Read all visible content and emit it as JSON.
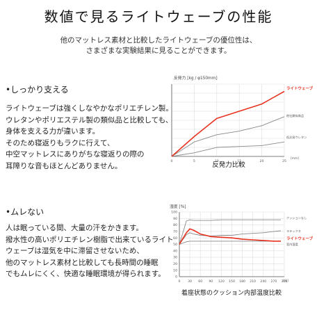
{
  "page": {
    "title": "数値で見るライトウェーブの性能",
    "intro_lines": [
      "他のマットレス素材と比較したライトウェーブの優位性は、",
      "さまざまな実験結果に見ることができます。"
    ]
  },
  "section1": {
    "heading": "•しっかり支える",
    "lines": [
      "ライトウェーブは強くしなやかなポリエチレン製。",
      "ウレタンやポリエステル製の類似品と比較しても、",
      "身体を支える力が違います。",
      "そのため寝返りもラクに行えて、",
      "中空マットレスにありがちな寝返りの際の",
      "耳障りな音もほとんどありません。"
    ]
  },
  "section2": {
    "heading": "•ムレない",
    "lines": [
      "人は眠っている間、大量の汗をかきます。",
      "撥水性の高いポリエチレン樹脂で出来ているライト",
      "ウェーブは湿気を中に滞留させないため、",
      "他のマットレス素材と比較しても長時間の睡眠",
      "でもムレにくく、快適な睡眠環境が得られます。"
    ]
  },
  "chart_data": [
    {
      "type": "line",
      "title": "反発力比較",
      "ylabel": "反発力 [kg / φ150mm]",
      "xunit": "[mm]",
      "xlim": [
        0,
        25
      ],
      "ylim": [
        0,
        40
      ],
      "x_ticks": [
        "0",
        "5",
        "10",
        "15",
        "20",
        "25"
      ],
      "y_ticks": [
        "0",
        "5",
        "10",
        "15",
        "20",
        "25",
        "30",
        "35",
        "40"
      ],
      "grid": true,
      "series": [
        {
          "name": "ライトウェーブ",
          "color": "#e8321e",
          "x": [
            0,
            5,
            10,
            15,
            20,
            25
          ],
          "y": [
            0,
            11,
            21,
            25,
            29,
            36
          ]
        },
        {
          "name": "他社類似商品",
          "color": "#888888",
          "x": [
            0,
            5,
            10,
            15,
            20,
            25
          ],
          "y": [
            0,
            8,
            12,
            14,
            17,
            22
          ]
        },
        {
          "name": "低反発ウレタン",
          "color": "#888888",
          "x": [
            0,
            5,
            10,
            15,
            20,
            25
          ],
          "y": [
            0,
            2,
            5,
            5.5,
            6,
            8
          ]
        }
      ]
    },
    {
      "type": "line",
      "title": "着座状態のクッション内部温度比較",
      "ylabel": "湿度 [%]",
      "xunit": "[分]",
      "xlim": [
        0,
        300
      ],
      "ylim": [
        0,
        100
      ],
      "x_ticks": [
        "0",
        "30",
        "60",
        "90",
        "120",
        "150",
        "180",
        "210",
        "240",
        "270",
        "300"
      ],
      "y_ticks": [
        "0",
        "10",
        "20",
        "30",
        "40",
        "50",
        "60",
        "70",
        "80",
        "90",
        "100"
      ],
      "grid": true,
      "series": [
        {
          "name": "クッションなし",
          "color": "#888888",
          "x": [
            0,
            20,
            30,
            40,
            60,
            90,
            120,
            150,
            180,
            210,
            240,
            270,
            290
          ],
          "y": [
            50,
            86,
            88,
            87,
            87,
            87,
            88,
            88,
            88,
            88,
            88,
            88,
            88
          ]
        },
        {
          "name": "ラテックス",
          "color": "#888888",
          "x": [
            0,
            20,
            30,
            40,
            60,
            90,
            120,
            150,
            180,
            210,
            240,
            270,
            290
          ],
          "y": [
            50,
            65,
            68,
            66,
            64,
            63,
            64,
            64,
            66,
            67,
            68,
            70,
            71
          ]
        },
        {
          "name": "ライトウェーブ",
          "color": "#e8321e",
          "x": [
            0,
            20,
            30,
            40,
            60,
            90,
            120,
            150,
            180,
            210,
            240,
            270,
            290
          ],
          "y": [
            50,
            68,
            74,
            72,
            66,
            62,
            61,
            60,
            58,
            57,
            56,
            55,
            55
          ]
        },
        {
          "name": "室内湿度",
          "color": "#888888",
          "x": [
            0,
            20,
            30,
            40,
            60,
            90,
            120,
            150,
            180,
            210,
            240,
            270,
            290
          ],
          "y": [
            50,
            54,
            55,
            55,
            55,
            55,
            55,
            55,
            55,
            55,
            55,
            55,
            55
          ]
        }
      ]
    }
  ]
}
